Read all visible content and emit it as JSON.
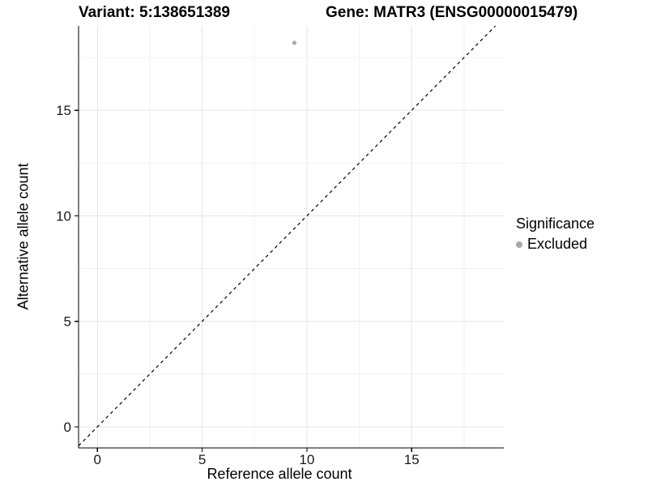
{
  "chart_data": {
    "type": "scatter",
    "title_left": "Variant: 5:138651389",
    "title_right": "Gene: MATR3 (ENSG00000015479)",
    "xlabel": "Reference allele count",
    "ylabel": "Alternative allele count",
    "x_ticks": [
      0,
      5,
      10,
      15
    ],
    "y_ticks": [
      0,
      5,
      10,
      15
    ],
    "x_minor": [
      2.5,
      7.5,
      12.5,
      17.5
    ],
    "y_minor": [
      2.5,
      7.5,
      12.5,
      17.5
    ],
    "xlim": [
      -0.9,
      19.4
    ],
    "ylim": [
      -1.0,
      19.0
    ],
    "grid": true,
    "points": [
      {
        "x": 9.4,
        "y": 18.2,
        "series": "Excluded",
        "ref_count": 9,
        "alt_count": 18
      }
    ],
    "reference_line": {
      "kind": "identity y=x",
      "linetype": "dashed",
      "color": "#000000"
    },
    "legend": {
      "position": "right",
      "title": "Significance",
      "items": [
        {
          "label": "Excluded",
          "color": "#a8a8a8"
        }
      ]
    },
    "colors": {
      "point": "#a8a8a8",
      "grid_major": "#e6e6e6",
      "grid_minor": "#f2f2f2",
      "axis": "#000000",
      "text": "#000000"
    }
  }
}
